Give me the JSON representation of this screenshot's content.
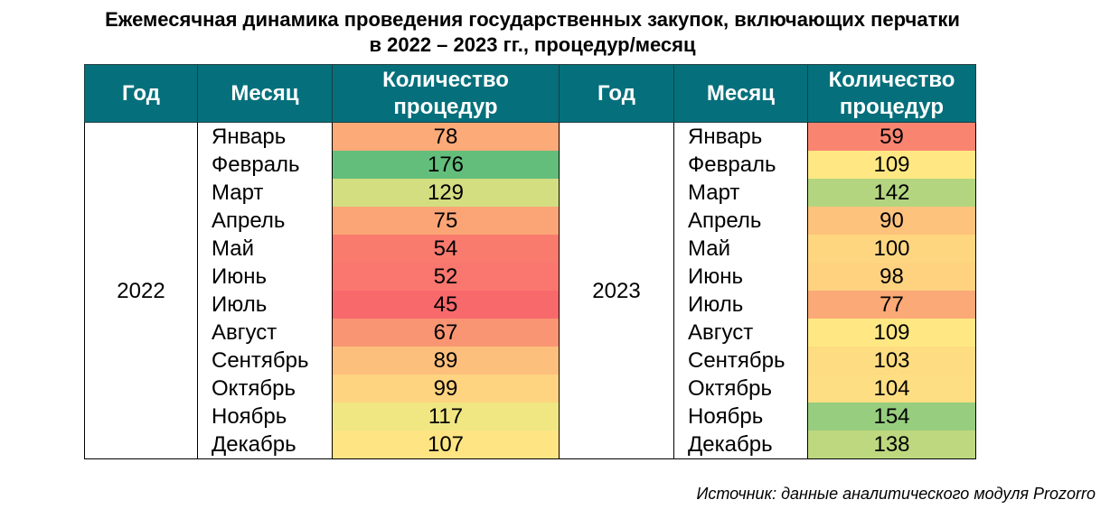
{
  "title_line1": "Ежемесячная динамика проведения государственных закупок, включающих перчатки",
  "title_line2": "в 2022 – 2023 гг., процедур/месяц",
  "headers": {
    "year": "Год",
    "month": "Месяц",
    "count_line1": "Количество",
    "count_line2": "процедур"
  },
  "source": "Источник: данные аналитического модуля Prozorro",
  "chart_data": {
    "type": "table",
    "columns": [
      "Год",
      "Месяц",
      "Количество процедур"
    ],
    "categories": [
      "Январь",
      "Февраль",
      "Март",
      "Апрель",
      "Май",
      "Июнь",
      "Июль",
      "Август",
      "Сентябрь",
      "Октябрь",
      "Ноябрь",
      "Декабрь"
    ],
    "series": [
      {
        "name": "2022",
        "values": [
          78,
          176,
          129,
          75,
          54,
          52,
          45,
          67,
          89,
          99,
          117,
          107
        ]
      },
      {
        "name": "2023",
        "values": [
          59,
          109,
          142,
          90,
          100,
          98,
          77,
          109,
          103,
          104,
          154,
          138
        ]
      }
    ],
    "color_scale": {
      "low": "#f8696b",
      "mid": "#ffeb84",
      "high": "#63be7b"
    }
  }
}
